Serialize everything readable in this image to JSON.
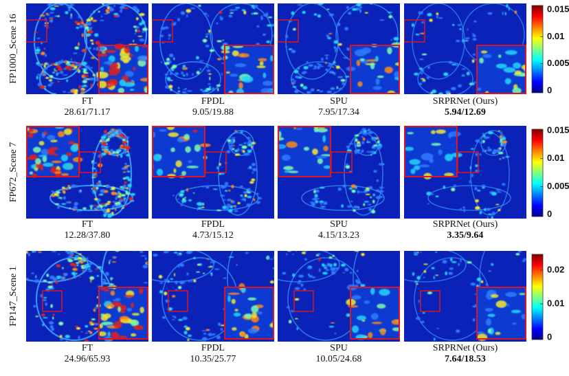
{
  "rows": [
    {
      "label": "FP1000_Scene 16",
      "colorbar": {
        "ticks": [
          "0.015",
          "0.01",
          "0.005",
          "0"
        ]
      },
      "panels": [
        {
          "method": "FT",
          "metrics": "28.61/71.17"
        },
        {
          "method": "FPDL",
          "metrics": "9.05/19.88"
        },
        {
          "method": "SPU",
          "metrics": "7.95/17.34"
        },
        {
          "method": "SRPRNet (Ours)",
          "metrics": "5.94/12.69"
        }
      ]
    },
    {
      "label": "FP672_Scene 7",
      "colorbar": {
        "ticks": [
          "0.015",
          "0.01",
          "0.005",
          "0"
        ]
      },
      "panels": [
        {
          "method": "FT",
          "metrics": "12.28/37.80"
        },
        {
          "method": "FPDL",
          "metrics": "4.73/15.12"
        },
        {
          "method": "SPU",
          "metrics": "4.15/13.23"
        },
        {
          "method": "SRPRNet (Ours)",
          "metrics": "3.35/9.64"
        }
      ]
    },
    {
      "label": "FP147_Scene 1",
      "colorbar": {
        "ticks": [
          "0.02",
          "0.01",
          "0"
        ]
      },
      "panels": [
        {
          "method": "FT",
          "metrics": "24.96/65.93"
        },
        {
          "method": "FPDL",
          "metrics": "10.35/25.77"
        },
        {
          "method": "SPU",
          "metrics": "10.05/24.68"
        },
        {
          "method": "SRPRNet (Ours)",
          "metrics": "7.64/18.53"
        }
      ]
    }
  ]
}
